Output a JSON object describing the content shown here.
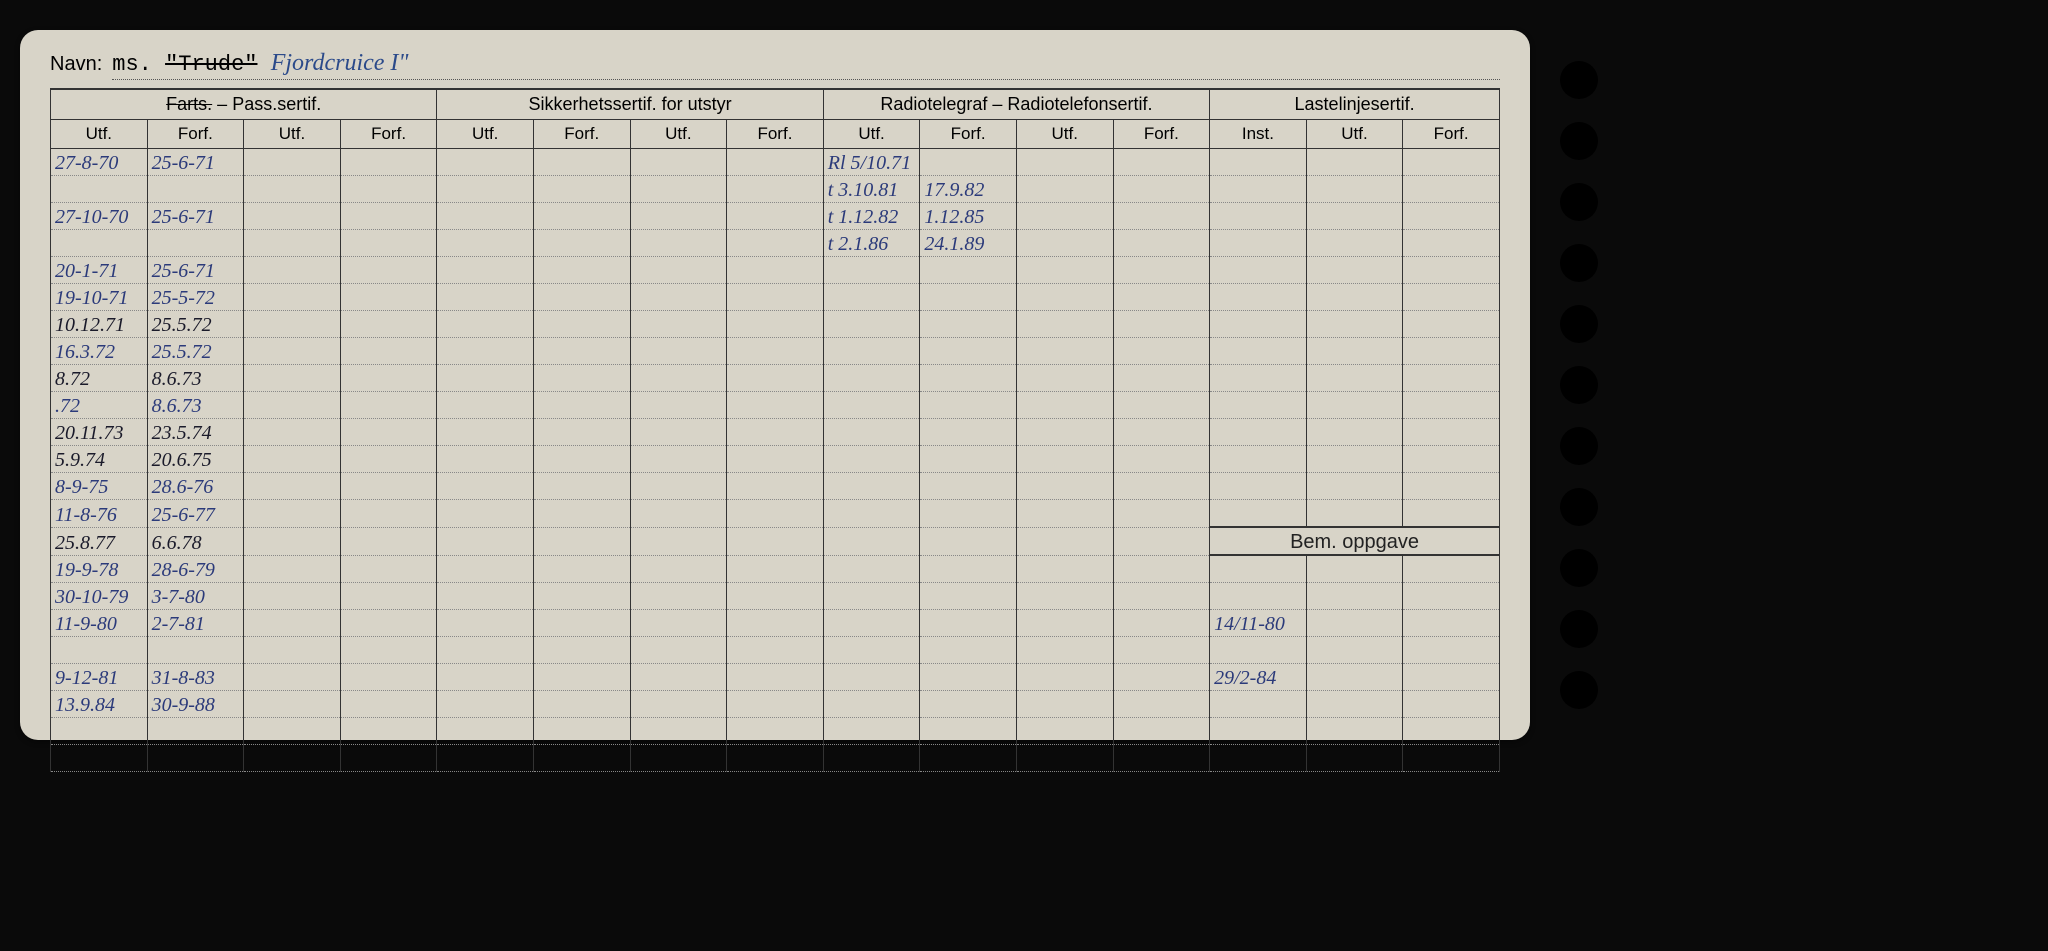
{
  "navn": {
    "label": "Navn:",
    "prefix": "ms.",
    "struck": "\"Trude\"",
    "written": "Fjordcruice I\""
  },
  "sections": {
    "pass": {
      "title_struck": "Farts.",
      "title_dash": "–",
      "title": "Pass.sertif.",
      "utf": "Utf.",
      "forf": "Forf."
    },
    "sikk": {
      "title": "Sikkerhetssertif. for utstyr",
      "utf": "Utf.",
      "forf": "Forf."
    },
    "radio": {
      "title": "Radiotelegraf – Radiotelefonsertif.",
      "utf": "Utf.",
      "forf": "Forf."
    },
    "laste": {
      "title": "Lastelinjesertif.",
      "inst": "Inst.",
      "utf": "Utf.",
      "forf": "Forf."
    },
    "bem": {
      "title": "Bem. oppgave"
    }
  },
  "rows": [
    {
      "p1u": "27-8-70",
      "p1f": "25-6-71",
      "r1u": "Rl 5/10.71",
      "r1f": ""
    },
    {
      "p1u": "",
      "p1f": "",
      "r1u": "t 3.10.81",
      "r1f": "17.9.82"
    },
    {
      "p1u": "27-10-70",
      "p1f": "25-6-71",
      "r1u": "t 1.12.82",
      "r1f": "1.12.85"
    },
    {
      "p1u": "",
      "p1f": "",
      "r1u": "t 2.1.86",
      "r1f": "24.1.89"
    },
    {
      "p1u": "20-1-71",
      "p1f": "25-6-71"
    },
    {
      "p1u": "19-10-71",
      "p1f": "25-5-72"
    },
    {
      "p1u": "10.12.71",
      "p1f": "25.5.72",
      "dark": true
    },
    {
      "p1u": "16.3.72",
      "p1f": "25.5.72"
    },
    {
      "p1u": "  8.72",
      "p1f": "8.6.73",
      "dark": true
    },
    {
      "p1u": "   .72",
      "p1f": "8.6.73"
    },
    {
      "p1u": "20.11.73",
      "p1f": "23.5.74",
      "dark": true
    },
    {
      "p1u": "5.9.74",
      "p1f": "20.6.75",
      "dark": true
    },
    {
      "p1u": "8-9-75",
      "p1f": "28.6-76"
    },
    {
      "p1u": "11-8-76",
      "p1f": "25-6-77",
      "bem_sep": true
    },
    {
      "p1u": "25.8.77",
      "p1f": "6.6.78",
      "dark": true,
      "bem_header": true
    },
    {
      "p1u": "19-9-78",
      "p1f": "28-6-79",
      "bem_sep2": true
    },
    {
      "p1u": "30-10-79",
      "p1f": "3-7-80"
    },
    {
      "p1u": "11-9-80",
      "p1f": "2-7-81",
      "bem": "14/11-80"
    },
    {
      "p1u": "",
      "p1f": ""
    },
    {
      "p1u": "9-12-81",
      "p1f": "31-8-83",
      "bem": "29/2-84"
    },
    {
      "p1u": "13.9.84",
      "p1f": "30-9-88"
    },
    {
      "p1u": "",
      "p1f": ""
    },
    {
      "p1u": "",
      "p1f": ""
    }
  ]
}
